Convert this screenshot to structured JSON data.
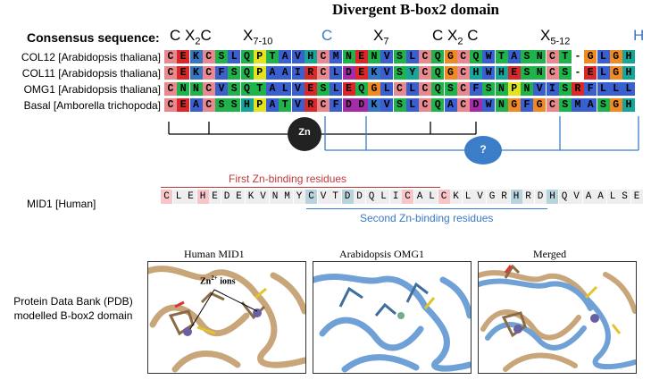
{
  "title": "Divergent B-box2 domain",
  "consensus_label": "Consensus sequence:",
  "motifs": [
    {
      "text": "C X",
      "sub": "2",
      "tail": "C",
      "color": "black"
    },
    {
      "text": "X",
      "sub": "7-10",
      "tail": "",
      "color": "black"
    },
    {
      "text": "C",
      "sub": "",
      "tail": "",
      "color": "blue"
    },
    {
      "text": "X",
      "sub": "7",
      "tail": "",
      "color": "black"
    },
    {
      "text": "C X",
      "sub": "2",
      "tail": " C",
      "color": "black"
    },
    {
      "text": "X",
      "sub": "5-12",
      "tail": "",
      "color": "black"
    },
    {
      "text": "H",
      "sub": "",
      "tail": "",
      "color": "blue"
    }
  ],
  "sequences": [
    {
      "name": "COL12 [Arabidopsis thaliana]",
      "residues": "CEKCSLQPTAVHCMNENVSLCQGCQWTASNCT-GLGH"
    },
    {
      "name": "COL11 [Arabidopsis thaliana]",
      "residues": "CEKCFSQPAAIRCLDEKVSYCQGCHWHESNCS-ELGH"
    },
    {
      "name": "OMG1 [Arabidopsis thaliana]",
      "residues": "CNNCVSQTALVESLEQGLCLCQSCFSNPNVISRFLLL"
    },
    {
      "name": "Basal [Amborella trichopoda]",
      "residues": "CEACSSHPATVRCFDDKVSLCQACDWNGFGCSMASGH"
    }
  ],
  "zn_label": "Zn",
  "unknown_label": "?",
  "mid1": {
    "label": "MID1 [Human]",
    "residues": "CLEHEDEKVNMYCVTDDQLICALCKLVGRHRDHQVAALSE",
    "first_label": "First Zn-binding residues",
    "second_label": "Second Zn-binding residues"
  },
  "pdb_label": "Protein Data Bank (PDB) modelled B-box2 domain",
  "panels": [
    {
      "title": "Human  MID1",
      "annotation": "Zn2+ ions"
    },
    {
      "title": "Arabidopsis OMG1"
    },
    {
      "title": "Merged"
    }
  ],
  "colors": {
    "C": "#e8898f",
    "E": "#d9272a",
    "K": "#3575c4",
    "Q": "#20b24b",
    "N": "#20b24b",
    "T": "#20b24b",
    "S": "#20b24b",
    "A": "#3a5fcf",
    "V": "#3a5fcf",
    "L": "#3a5fcf",
    "I": "#3a5fcf",
    "M": "#3a5fcf",
    "F": "#3a5fcf",
    "W": "#3a5fcf",
    "H": "#17a59a",
    "Y": "#17a59a",
    "G": "#f08a24",
    "P": "#e3e320",
    "D": "#a42ca8",
    "R": "#d92a2a",
    "zn_circle": "#222222",
    "unknown_circle": "#3c7dc8",
    "bracket_black": "#000000",
    "bracket_blue": "#3c7dc8",
    "mid_red_line": "#c0393b",
    "mid_blue_line": "#3a78c8",
    "protein_tan": "#c8a67a",
    "protein_blue": "#6fa0d6"
  }
}
